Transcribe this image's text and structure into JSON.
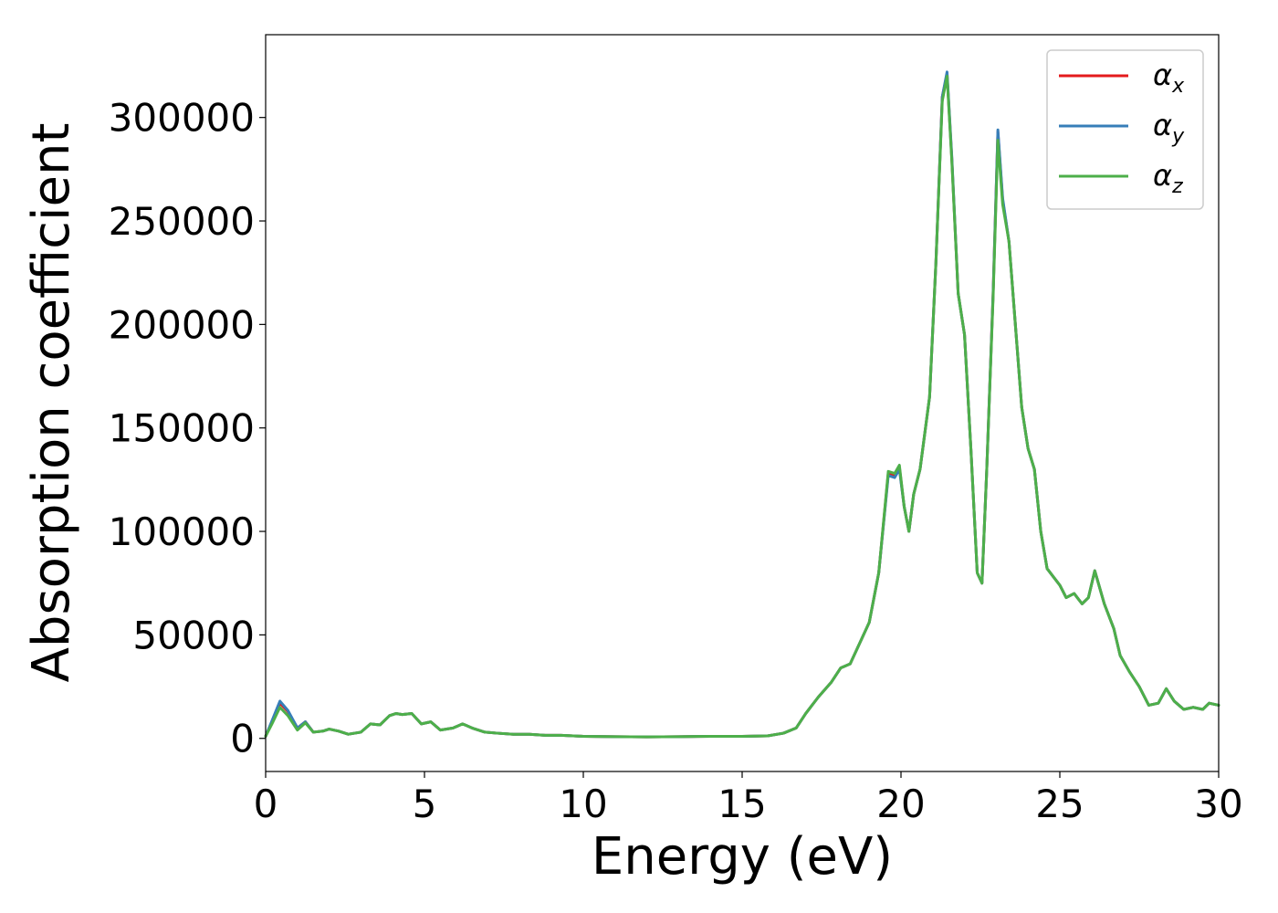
{
  "chart_data": {
    "type": "line",
    "title": "",
    "xlabel": "Energy (eV)",
    "ylabel": "Absorption coefficient",
    "xlim": [
      0,
      30
    ],
    "ylim": [
      -16000,
      340000
    ],
    "x_ticks": [
      "0",
      "5",
      "10",
      "15",
      "20",
      "25",
      "30"
    ],
    "x_tick_values": [
      0,
      5,
      10,
      15,
      20,
      25,
      30
    ],
    "y_ticks": [
      "0",
      "50000",
      "100000",
      "150000",
      "200000",
      "250000",
      "300000"
    ],
    "y_tick_values": [
      0,
      50000,
      100000,
      150000,
      200000,
      250000,
      300000
    ],
    "grid": false,
    "legend_position": "top-right",
    "series": [
      {
        "name": "α",
        "subscript": "x",
        "color": "#e41a1c",
        "x": [
          0.0,
          0.2,
          0.45,
          0.7,
          1.0,
          1.25,
          1.5,
          1.8,
          2.0,
          2.3,
          2.6,
          3.0,
          3.3,
          3.6,
          3.9,
          4.1,
          4.3,
          4.6,
          4.9,
          5.2,
          5.5,
          5.9,
          6.2,
          6.5,
          6.9,
          7.3,
          7.8,
          8.3,
          8.8,
          9.3,
          10.0,
          11.0,
          12.0,
          13.0,
          14.0,
          15.0,
          15.8,
          16.3,
          16.7,
          17.0,
          17.4,
          17.8,
          18.1,
          18.4,
          18.7,
          19.0,
          19.3,
          19.6,
          19.8,
          19.95,
          20.1,
          20.25,
          20.4,
          20.6,
          20.9,
          21.1,
          21.3,
          21.45,
          21.6,
          21.8,
          22.0,
          22.2,
          22.4,
          22.55,
          22.7,
          22.9,
          23.05,
          23.2,
          23.4,
          23.6,
          23.8,
          24.0,
          24.2,
          24.4,
          24.6,
          24.8,
          25.0,
          25.2,
          25.45,
          25.7,
          25.9,
          26.1,
          26.4,
          26.7,
          26.9,
          27.2,
          27.5,
          27.8,
          28.1,
          28.35,
          28.6,
          28.9,
          29.2,
          29.5,
          29.7,
          30.0
        ],
        "y": [
          1000,
          8000,
          17000,
          13000,
          5000,
          8000,
          3000,
          3500,
          4500,
          3500,
          2000,
          3000,
          7000,
          6500,
          11000,
          12000,
          11500,
          12000,
          7000,
          8000,
          4000,
          5000,
          7000,
          5000,
          3000,
          2500,
          2000,
          2000,
          1500,
          1500,
          1000,
          800,
          700,
          800,
          1000,
          1000,
          1200,
          2500,
          5000,
          12000,
          20000,
          27000,
          34000,
          36000,
          46000,
          56000,
          80000,
          128000,
          127000,
          131000,
          112000,
          100000,
          118000,
          130000,
          165000,
          230000,
          310000,
          321000,
          280000,
          215000,
          195000,
          140000,
          80000,
          75000,
          130000,
          215000,
          293000,
          260000,
          240000,
          200000,
          160000,
          140000,
          130000,
          100000,
          82000,
          78000,
          74000,
          68000,
          70000,
          65000,
          68000,
          81000,
          65000,
          53000,
          40000,
          32000,
          25000,
          16000,
          17000,
          24000,
          18000,
          14000,
          15000,
          14000,
          17000,
          16000
        ]
      },
      {
        "name": "α",
        "subscript": "y",
        "color": "#377eb8",
        "x": [
          0.0,
          0.2,
          0.45,
          0.7,
          1.0,
          1.25,
          1.5,
          1.8,
          2.0,
          2.3,
          2.6,
          3.0,
          3.3,
          3.6,
          3.9,
          4.1,
          4.3,
          4.6,
          4.9,
          5.2,
          5.5,
          5.9,
          6.2,
          6.5,
          6.9,
          7.3,
          7.8,
          8.3,
          8.8,
          9.3,
          10.0,
          11.0,
          12.0,
          13.0,
          14.0,
          15.0,
          15.8,
          16.3,
          16.7,
          17.0,
          17.4,
          17.8,
          18.1,
          18.4,
          18.7,
          19.0,
          19.3,
          19.6,
          19.8,
          19.95,
          20.1,
          20.25,
          20.4,
          20.6,
          20.9,
          21.1,
          21.3,
          21.45,
          21.6,
          21.8,
          22.0,
          22.2,
          22.4,
          22.55,
          22.7,
          22.9,
          23.05,
          23.2,
          23.4,
          23.6,
          23.8,
          24.0,
          24.2,
          24.4,
          24.6,
          24.8,
          25.0,
          25.2,
          25.45,
          25.7,
          25.9,
          26.1,
          26.4,
          26.7,
          26.9,
          27.2,
          27.5,
          27.8,
          28.1,
          28.35,
          28.6,
          28.9,
          29.2,
          29.5,
          29.7,
          30.0
        ],
        "y": [
          1000,
          8500,
          18000,
          13500,
          5000,
          8000,
          3000,
          3500,
          4500,
          3500,
          2000,
          3000,
          7000,
          6500,
          11000,
          12000,
          11500,
          12000,
          7000,
          8000,
          4000,
          5000,
          7000,
          5000,
          3000,
          2500,
          2000,
          2000,
          1500,
          1500,
          1000,
          800,
          700,
          800,
          1000,
          1000,
          1200,
          2500,
          5000,
          12000,
          20000,
          27000,
          34000,
          36000,
          46000,
          56000,
          80000,
          127000,
          126000,
          130000,
          112000,
          100000,
          118000,
          130000,
          165000,
          230000,
          310000,
          322000,
          281000,
          215000,
          195000,
          140000,
          80000,
          75000,
          130000,
          215000,
          294000,
          261000,
          240000,
          200000,
          160000,
          140000,
          130000,
          100000,
          82000,
          78000,
          74000,
          68000,
          70000,
          65000,
          68000,
          81000,
          65000,
          53000,
          40000,
          32000,
          25000,
          16000,
          17000,
          24000,
          18000,
          14000,
          15000,
          14000,
          17000,
          16000
        ]
      },
      {
        "name": "α",
        "subscript": "z",
        "color": "#4daf4a",
        "x": [
          0.0,
          0.2,
          0.45,
          0.7,
          1.0,
          1.25,
          1.5,
          1.8,
          2.0,
          2.3,
          2.6,
          3.0,
          3.3,
          3.6,
          3.9,
          4.1,
          4.3,
          4.6,
          4.9,
          5.2,
          5.5,
          5.9,
          6.2,
          6.5,
          6.9,
          7.3,
          7.8,
          8.3,
          8.8,
          9.3,
          10.0,
          11.0,
          12.0,
          13.0,
          14.0,
          15.0,
          15.8,
          16.3,
          16.7,
          17.0,
          17.4,
          17.8,
          18.1,
          18.4,
          18.7,
          19.0,
          19.3,
          19.6,
          19.8,
          19.95,
          20.1,
          20.25,
          20.4,
          20.6,
          20.9,
          21.1,
          21.3,
          21.45,
          21.6,
          21.8,
          22.0,
          22.2,
          22.4,
          22.55,
          22.7,
          22.9,
          23.05,
          23.2,
          23.4,
          23.6,
          23.8,
          24.0,
          24.2,
          24.4,
          24.6,
          24.8,
          25.0,
          25.2,
          25.45,
          25.7,
          25.9,
          26.1,
          26.4,
          26.7,
          26.9,
          27.2,
          27.5,
          27.8,
          28.1,
          28.35,
          28.6,
          28.9,
          29.2,
          29.5,
          29.7,
          30.0
        ],
        "y": [
          1000,
          7000,
          15000,
          11000,
          4000,
          7500,
          3000,
          3500,
          4500,
          3500,
          2000,
          3000,
          7000,
          6500,
          11000,
          12000,
          11500,
          12000,
          7000,
          8000,
          4000,
          5000,
          7000,
          5000,
          3000,
          2500,
          2000,
          2000,
          1500,
          1500,
          1000,
          800,
          700,
          800,
          1000,
          1000,
          1200,
          2500,
          5000,
          12000,
          20000,
          27000,
          34000,
          36000,
          46000,
          56000,
          80000,
          129000,
          128000,
          132000,
          112000,
          100000,
          118000,
          130000,
          165000,
          230000,
          308000,
          320000,
          279000,
          215000,
          195000,
          140000,
          80000,
          75000,
          130000,
          213000,
          289000,
          258000,
          240000,
          200000,
          160000,
          140000,
          130000,
          100000,
          82000,
          78000,
          74000,
          68000,
          70000,
          65000,
          68000,
          81000,
          65000,
          53000,
          40000,
          32000,
          25000,
          16000,
          17000,
          24000,
          18000,
          14000,
          15000,
          14000,
          17000,
          16000
        ]
      }
    ]
  }
}
